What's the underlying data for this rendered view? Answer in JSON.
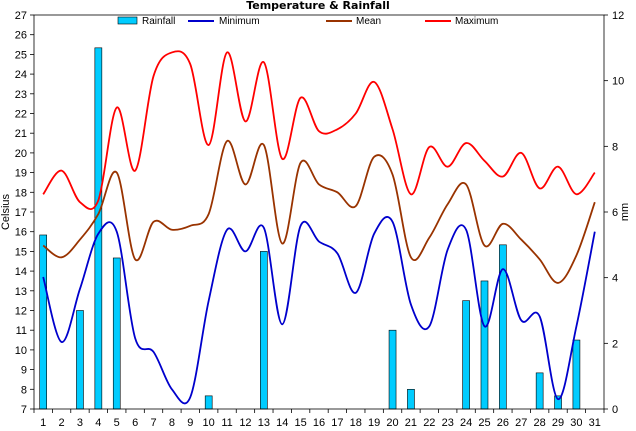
{
  "chart_data": {
    "type": "bar+line",
    "title": "Temperature & Rainfall",
    "ylabel_left": "Celsius",
    "ylabel_right": "mm",
    "ylim_left": [
      7,
      27
    ],
    "ylim_right": [
      0,
      12
    ],
    "yticks_left": [
      "7",
      "8",
      "9",
      "10",
      "11",
      "12",
      "13",
      "14",
      "15",
      "16",
      "17",
      "18",
      "19",
      "20",
      "21",
      "22",
      "23",
      "24",
      "25",
      "26",
      "27"
    ],
    "yticks_right": [
      "0",
      "2",
      "4",
      "6",
      "8",
      "10",
      "12"
    ],
    "categories": [
      "1",
      "2",
      "3",
      "4",
      "5",
      "6",
      "7",
      "8",
      "9",
      "10",
      "11",
      "12",
      "13",
      "14",
      "15",
      "16",
      "17",
      "18",
      "19",
      "20",
      "21",
      "22",
      "23",
      "24",
      "25",
      "26",
      "27",
      "28",
      "29",
      "30",
      "31"
    ],
    "rainfall": {
      "name": "Rainfall",
      "color": "#00CCFF",
      "values": [
        5.3,
        0,
        3.0,
        11.0,
        4.6,
        0,
        0,
        0,
        0,
        0.4,
        0,
        0,
        4.8,
        0,
        0,
        0,
        0,
        0,
        0,
        2.4,
        0.6,
        0,
        0,
        3.3,
        3.9,
        5.0,
        0,
        1.1,
        0.4,
        2.1,
        0
      ]
    },
    "series": [
      {
        "name": "Minimum",
        "color": "#0000CC",
        "values": [
          13.7,
          10.4,
          13.1,
          15.9,
          16.0,
          10.6,
          9.9,
          8.0,
          7.6,
          12.5,
          16.1,
          15.0,
          16.2,
          11.3,
          16.3,
          15.5,
          14.9,
          12.9,
          15.9,
          16.5,
          12.3,
          11.2,
          15.1,
          16.1,
          11.2,
          14.1,
          11.5,
          11.7,
          7.5,
          11.2,
          16.0
        ]
      },
      {
        "name": "Mean",
        "color": "#993300",
        "values": [
          15.3,
          14.7,
          15.6,
          16.9,
          19.0,
          14.6,
          16.5,
          16.1,
          16.3,
          16.9,
          20.6,
          18.4,
          20.4,
          15.4,
          19.5,
          18.4,
          18.0,
          17.3,
          19.8,
          18.9,
          14.7,
          15.7,
          17.4,
          18.4,
          15.3,
          16.4,
          15.6,
          14.6,
          13.4,
          14.8,
          17.5
        ]
      },
      {
        "name": "Maximum",
        "color": "#FF0000",
        "values": [
          17.9,
          19.1,
          17.5,
          17.6,
          22.3,
          19.1,
          23.9,
          25.1,
          24.5,
          20.4,
          25.1,
          21.6,
          24.6,
          19.7,
          22.8,
          21.1,
          21.2,
          22.0,
          23.6,
          21.2,
          17.9,
          20.3,
          19.3,
          20.5,
          19.6,
          18.8,
          20.0,
          18.2,
          19.3,
          17.9,
          19.0
        ]
      }
    ]
  }
}
